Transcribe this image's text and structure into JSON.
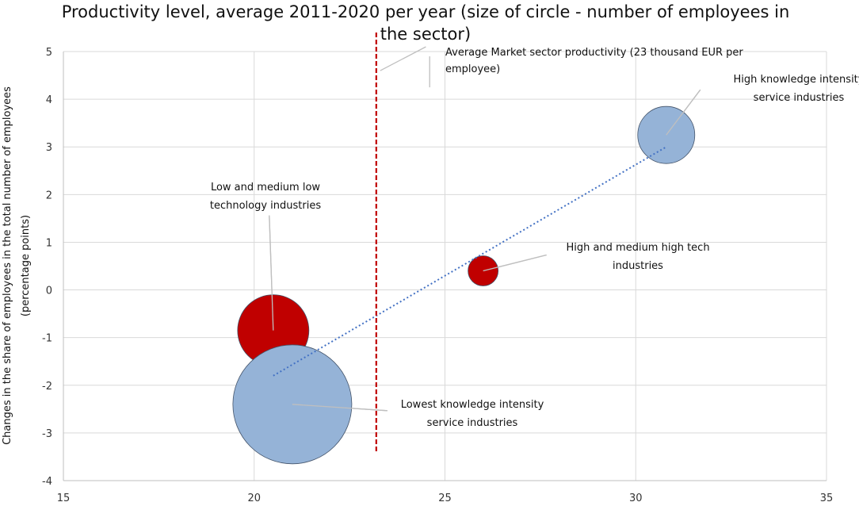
{
  "chart_data": {
    "type": "scatter",
    "subtype": "bubble",
    "title_lines": [
      "Productivity level, average 2011-2020 per year (size of circle - number of employees in",
      "the sector)"
    ],
    "ylabel_lines": [
      "Changes in the share of employees in the total number of employees",
      "(percentage points)"
    ],
    "xlim": [
      15,
      35
    ],
    "ylim": [
      -4,
      5
    ],
    "x_ticks": [
      15,
      20,
      25,
      30,
      35
    ],
    "y_ticks": [
      5,
      4,
      3,
      2,
      1,
      0,
      -1,
      -2,
      -3,
      -4
    ],
    "grid": true,
    "series": [
      {
        "name": "Low and medium low technology industries",
        "x": 20.5,
        "y": -0.85,
        "size": 45,
        "color": "#c00000"
      },
      {
        "name": "Lowest knowledge intensity service industries",
        "x": 21.0,
        "y": -2.4,
        "size": 75,
        "color": "#95b3d7"
      },
      {
        "name": "High and medium high tech industries",
        "x": 26.0,
        "y": 0.4,
        "size": 19,
        "color": "#c00000"
      },
      {
        "name": "High knowledge intensity service industries",
        "x": 30.8,
        "y": 3.25,
        "size": 36,
        "color": "#95b3d7"
      }
    ],
    "reference_line": {
      "x": 23.2,
      "y_range": [
        -3.4,
        5.4
      ],
      "color": "#c00000"
    },
    "trendline": {
      "x": [
        20.5,
        30.8
      ],
      "y": [
        -1.8,
        3.0
      ],
      "color": "#4472c4"
    },
    "annotations": [
      {
        "lines": [
          "Average Market sector productivity (23 thousand EUR per",
          "employee)"
        ]
      },
      {
        "lines": [
          "High knowledge intensity",
          "service industries"
        ]
      },
      {
        "lines": [
          "Low and medium low",
          "technology industries"
        ]
      },
      {
        "lines": [
          "High and medium high tech",
          "industries"
        ]
      },
      {
        "lines": [
          "Lowest knowledge intensity",
          "service industries"
        ]
      }
    ]
  }
}
